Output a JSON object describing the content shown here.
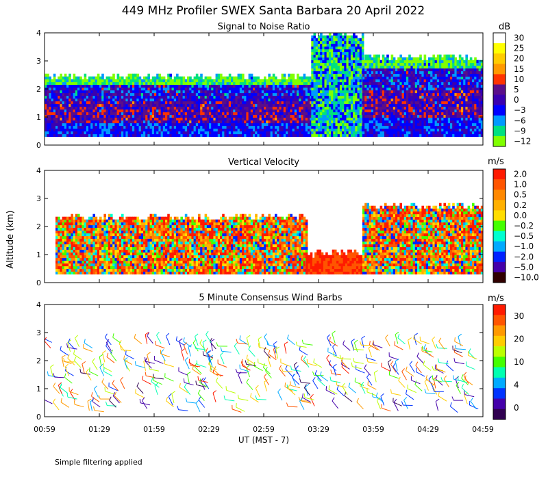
{
  "title": "449 MHz Profiler SWEX Santa Barbara 20 April 2022",
  "footnote": "Simple filtering applied",
  "y_axis_label": "Altitude (km)",
  "x_axis_label": "UT  (MST - 7)",
  "x_ticks": [
    "00:59",
    "01:29",
    "01:59",
    "02:29",
    "02:59",
    "03:29",
    "03:59",
    "04:29",
    "04:59"
  ],
  "y_ticks": [
    "0",
    "1",
    "2",
    "3",
    "4"
  ],
  "chart_data": [
    {
      "type": "heatmap",
      "title": "Signal to Noise Ratio",
      "xlabel": "UT  (MST - 7)",
      "ylabel": "Altitude (km)",
      "x_range": [
        "00:59",
        "04:59"
      ],
      "ylim": [
        0,
        4
      ],
      "colorbar": {
        "unit": "dB",
        "labels": [
          "30",
          "25",
          "20",
          "15",
          "10",
          "5",
          "0",
          "−3",
          "−6",
          "−9",
          "−12"
        ],
        "colors": [
          "#ffffff",
          "#ffff00",
          "#ffcc00",
          "#ff9900",
          "#ff3300",
          "#5a0e8a",
          "#3a00b0",
          "#0000ff",
          "#0099ff",
          "#00e080",
          "#80ff00"
        ]
      },
      "regions": [
        {
          "t": [
            "00:59",
            "03:25"
          ],
          "alt_km": [
            0.3,
            2.5
          ],
          "snr_db": "-12 to 10"
        },
        {
          "t": [
            "03:25",
            "03:53"
          ],
          "alt_km": [
            0.3,
            4.0
          ],
          "snr_db": "-12 to -3"
        },
        {
          "t": [
            "03:53",
            "04:59"
          ],
          "alt_km": [
            0.3,
            3.2
          ],
          "snr_db": "-12 to 15"
        }
      ]
    },
    {
      "type": "heatmap",
      "title": "Vertical Velocity",
      "xlabel": "UT  (MST - 7)",
      "ylabel": "Altitude (km)",
      "x_range": [
        "00:59",
        "04:59"
      ],
      "ylim": [
        0,
        4
      ],
      "colorbar": {
        "unit": "m/s",
        "labels": [
          "2.0",
          "1.0",
          "0.5",
          "0.2",
          "0.0",
          "−0.2",
          "−0.5",
          "−1.0",
          "−2.0",
          "−5.0",
          "−10.0"
        ],
        "colors": [
          "#ff1a00",
          "#ff5500",
          "#ff8800",
          "#ffb000",
          "#ffdd00",
          "#44ff00",
          "#00ffd0",
          "#00aaff",
          "#0022ff",
          "#4400aa",
          "#300000"
        ]
      },
      "regions": [
        {
          "t": [
            "01:05",
            "03:22"
          ],
          "alt_km": [
            0.3,
            2.4
          ],
          "w_ms": "-2.0 to 2.0"
        },
        {
          "t": [
            "03:22",
            "03:53"
          ],
          "alt_km": [
            0.3,
            1.1
          ],
          "w_ms": "1.0 to 2.0"
        },
        {
          "t": [
            "03:53",
            "04:59"
          ],
          "alt_km": [
            0.3,
            2.8
          ],
          "w_ms": "-2.0 to 2.0"
        }
      ]
    },
    {
      "type": "scatter",
      "title": "5 Minute Consensus Wind Barbs",
      "xlabel": "UT  (MST - 7)",
      "ylabel": "Altitude (km)",
      "x_range": [
        "00:59",
        "04:59"
      ],
      "ylim": [
        0,
        4
      ],
      "colorbar": {
        "unit": "m/s",
        "labels": [
          "30",
          "20",
          "10",
          "4",
          "0"
        ],
        "colors": [
          "#ff1a00",
          "#ff5500",
          "#ff9900",
          "#ffcc00",
          "#bbff00",
          "#44ff00",
          "#00ffb0",
          "#00aaff",
          "#0033ff",
          "#4400aa",
          "#300050"
        ]
      },
      "speed_range_ms": [
        0,
        35
      ]
    }
  ]
}
